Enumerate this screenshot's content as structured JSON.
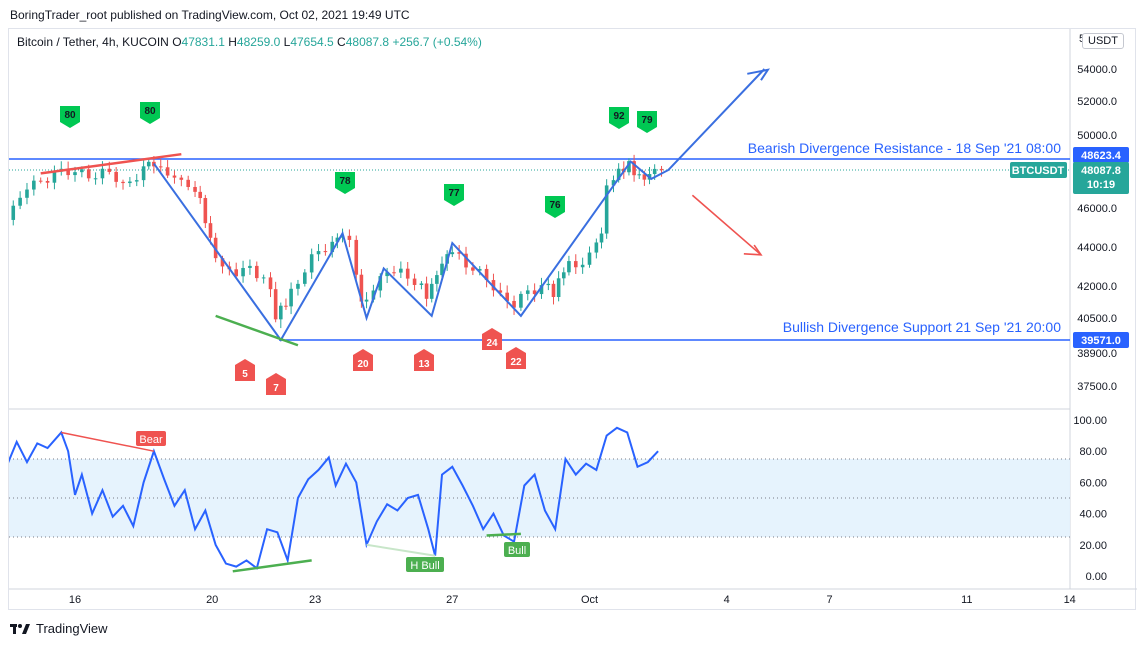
{
  "header": {
    "published_by": "BoringTrader_root published on TradingView.com, Oct 02, 2021 19:49 UTC"
  },
  "footer": {
    "brand": "TradingView"
  },
  "chart_data": {
    "type": "candlestick",
    "symbol_line": {
      "pair": "Bitcoin / Tether, 4h, KUCOIN",
      "open_label": "O",
      "open": "47831.1",
      "high_label": "H",
      "high": "48259.0",
      "low_label": "L",
      "low": "47654.5",
      "close_label": "C",
      "close": "48087.8",
      "change": "+256.7 (+0.54%)"
    },
    "currency_badge": "USDT",
    "price_axis": {
      "ticks": [
        "54000.0",
        "52000.0",
        "50000.0",
        "46000.0",
        "44000.0",
        "42000.0",
        "40500.0",
        "38900.0",
        "37500.0"
      ],
      "top_partial": "5"
    },
    "price_labels": {
      "resistance": "48623.4",
      "symbol": "BTCUSDT",
      "last": "48087.8",
      "countdown": "10:19",
      "support": "39571.0"
    },
    "x_axis": {
      "ticks": [
        "16",
        "20",
        "23",
        "27",
        "Oct",
        "4",
        "7",
        "11",
        "14"
      ]
    },
    "lines": {
      "resistance_text": "Bearish Divergence Resistance - 18 Sep '21 08:00",
      "resistance_price": 48623.4,
      "support_text": "Bullish Divergence Support 21 Sep '21 20:00",
      "support_price": 39571.0
    },
    "markers": {
      "green": [
        "80",
        "80",
        "78",
        "77",
        "76",
        "92",
        "79"
      ],
      "red": [
        "5",
        "7",
        "20",
        "13",
        "24",
        "22"
      ]
    },
    "price_path": [
      {
        "t": 14.0,
        "p": 45200
      },
      {
        "t": 14.4,
        "p": 46100
      },
      {
        "t": 14.8,
        "p": 47000
      },
      {
        "t": 15.2,
        "p": 47500
      },
      {
        "t": 15.6,
        "p": 48000
      },
      {
        "t": 16.0,
        "p": 47800
      },
      {
        "t": 16.4,
        "p": 48100
      },
      {
        "t": 16.8,
        "p": 47700
      },
      {
        "t": 17.2,
        "p": 47900
      },
      {
        "t": 17.6,
        "p": 47400
      },
      {
        "t": 18.0,
        "p": 47600
      },
      {
        "t": 18.3,
        "p": 48400
      },
      {
        "t": 18.7,
        "p": 47900
      },
      {
        "t": 19.1,
        "p": 47800
      },
      {
        "t": 19.5,
        "p": 47300
      },
      {
        "t": 19.8,
        "p": 46400
      },
      {
        "t": 20.1,
        "p": 44500
      },
      {
        "t": 20.5,
        "p": 43000
      },
      {
        "t": 20.9,
        "p": 42500
      },
      {
        "t": 21.3,
        "p": 43000
      },
      {
        "t": 21.7,
        "p": 42500
      },
      {
        "t": 22.0,
        "p": 40600
      },
      {
        "t": 22.3,
        "p": 41400
      },
      {
        "t": 22.7,
        "p": 42300
      },
      {
        "t": 23.1,
        "p": 43300
      },
      {
        "t": 23.5,
        "p": 44000
      },
      {
        "t": 23.8,
        "p": 44700
      },
      {
        "t": 24.2,
        "p": 44400
      },
      {
        "t": 24.5,
        "p": 41300
      },
      {
        "t": 24.9,
        "p": 42000
      },
      {
        "t": 25.3,
        "p": 42600
      },
      {
        "t": 25.7,
        "p": 42800
      },
      {
        "t": 26.1,
        "p": 42300
      },
      {
        "t": 26.4,
        "p": 41500
      },
      {
        "t": 26.7,
        "p": 42800
      },
      {
        "t": 27.0,
        "p": 43700
      },
      {
        "t": 27.4,
        "p": 43600
      },
      {
        "t": 27.8,
        "p": 42900
      },
      {
        "t": 28.2,
        "p": 42200
      },
      {
        "t": 28.6,
        "p": 41700
      },
      {
        "t": 29.0,
        "p": 41100
      },
      {
        "t": 29.4,
        "p": 41600
      },
      {
        "t": 29.8,
        "p": 42200
      },
      {
        "t": 30.1,
        "p": 41800
      },
      {
        "t": 30.4,
        "p": 43000
      },
      {
        "t": 30.8,
        "p": 43200
      },
      {
        "t": 31.2,
        "p": 43500
      },
      {
        "t": 31.5,
        "p": 44600
      },
      {
        "t": 31.7,
        "p": 47200
      },
      {
        "t": 32.0,
        "p": 47900
      },
      {
        "t": 32.3,
        "p": 48500
      },
      {
        "t": 32.6,
        "p": 47800
      },
      {
        "t": 32.9,
        "p": 47600
      },
      {
        "t": 33.1,
        "p": 48087.8
      }
    ],
    "rsi": {
      "axis_ticks": [
        "100.00",
        "80.00",
        "60.00",
        "40.00",
        "20.00",
        "0.00"
      ],
      "band": [
        25,
        75
      ],
      "mid": 50,
      "labels": [
        "Bear",
        "H Bull",
        "Bull"
      ],
      "values": [
        {
          "t": 14.0,
          "v": 70
        },
        {
          "t": 14.3,
          "v": 86
        },
        {
          "t": 14.6,
          "v": 73
        },
        {
          "t": 14.9,
          "v": 85
        },
        {
          "t": 15.2,
          "v": 82
        },
        {
          "t": 15.6,
          "v": 92
        },
        {
          "t": 15.8,
          "v": 80
        },
        {
          "t": 16.0,
          "v": 52
        },
        {
          "t": 16.2,
          "v": 65
        },
        {
          "t": 16.5,
          "v": 40
        },
        {
          "t": 16.8,
          "v": 55
        },
        {
          "t": 17.1,
          "v": 38
        },
        {
          "t": 17.4,
          "v": 45
        },
        {
          "t": 17.7,
          "v": 32
        },
        {
          "t": 18.0,
          "v": 60
        },
        {
          "t": 18.3,
          "v": 80
        },
        {
          "t": 18.6,
          "v": 62
        },
        {
          "t": 18.9,
          "v": 45
        },
        {
          "t": 19.2,
          "v": 55
        },
        {
          "t": 19.5,
          "v": 30
        },
        {
          "t": 19.8,
          "v": 42
        },
        {
          "t": 20.1,
          "v": 20
        },
        {
          "t": 20.4,
          "v": 8
        },
        {
          "t": 20.7,
          "v": 6
        },
        {
          "t": 21.0,
          "v": 10
        },
        {
          "t": 21.3,
          "v": 5
        },
        {
          "t": 21.6,
          "v": 30
        },
        {
          "t": 21.9,
          "v": 28
        },
        {
          "t": 22.2,
          "v": 10
        },
        {
          "t": 22.5,
          "v": 50
        },
        {
          "t": 22.8,
          "v": 62
        },
        {
          "t": 23.1,
          "v": 68
        },
        {
          "t": 23.4,
          "v": 76
        },
        {
          "t": 23.6,
          "v": 58
        },
        {
          "t": 23.9,
          "v": 72
        },
        {
          "t": 24.2,
          "v": 60
        },
        {
          "t": 24.5,
          "v": 20
        },
        {
          "t": 24.8,
          "v": 35
        },
        {
          "t": 25.1,
          "v": 46
        },
        {
          "t": 25.4,
          "v": 42
        },
        {
          "t": 25.7,
          "v": 50
        },
        {
          "t": 26.0,
          "v": 52
        },
        {
          "t": 26.3,
          "v": 30
        },
        {
          "t": 26.5,
          "v": 13
        },
        {
          "t": 26.7,
          "v": 65
        },
        {
          "t": 27.0,
          "v": 70
        },
        {
          "t": 27.3,
          "v": 58
        },
        {
          "t": 27.6,
          "v": 45
        },
        {
          "t": 27.9,
          "v": 30
        },
        {
          "t": 28.2,
          "v": 40
        },
        {
          "t": 28.5,
          "v": 26
        },
        {
          "t": 28.8,
          "v": 22
        },
        {
          "t": 29.1,
          "v": 58
        },
        {
          "t": 29.4,
          "v": 65
        },
        {
          "t": 29.7,
          "v": 42
        },
        {
          "t": 30.0,
          "v": 30
        },
        {
          "t": 30.3,
          "v": 75
        },
        {
          "t": 30.6,
          "v": 65
        },
        {
          "t": 30.9,
          "v": 72
        },
        {
          "t": 31.2,
          "v": 68
        },
        {
          "t": 31.5,
          "v": 90
        },
        {
          "t": 31.8,
          "v": 95
        },
        {
          "t": 32.1,
          "v": 92
        },
        {
          "t": 32.4,
          "v": 70
        },
        {
          "t": 32.7,
          "v": 73
        },
        {
          "t": 33.0,
          "v": 80
        }
      ]
    }
  }
}
